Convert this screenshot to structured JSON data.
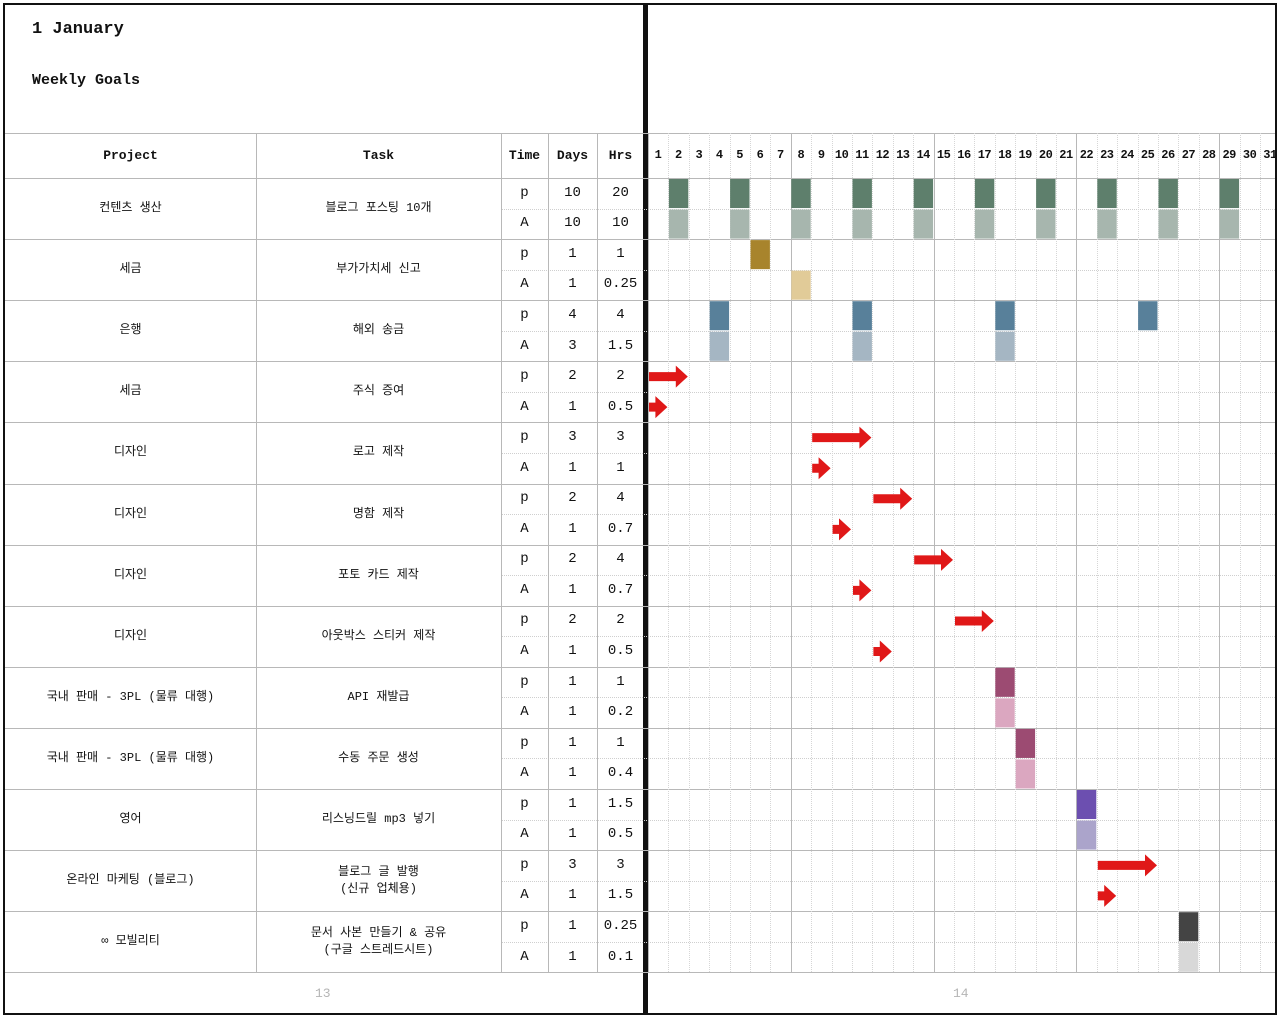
{
  "title": "1 January",
  "subtitle": "Weekly Goals",
  "columns": {
    "project": "Project",
    "task": "Task",
    "time": "Time",
    "days": "Days",
    "hrs": "Hrs"
  },
  "days": [
    "1",
    "2",
    "3",
    "4",
    "5",
    "6",
    "7",
    "8",
    "9",
    "10",
    "11",
    "12",
    "13",
    "14",
    "15",
    "16",
    "17",
    "18",
    "19",
    "20",
    "21",
    "22",
    "23",
    "24",
    "25",
    "26",
    "27",
    "28",
    "29",
    "30",
    "31"
  ],
  "rows": [
    {
      "project": "컨텐츠 생산",
      "task": "블로그 포스팅 10개",
      "p": {
        "label": "p",
        "days": "10",
        "hrs": "20"
      },
      "a": {
        "label": "A",
        "days": "10",
        "hrs": "10"
      }
    },
    {
      "project": "세금",
      "task": "부가가치세 신고",
      "p": {
        "label": "p",
        "days": "1",
        "hrs": "1"
      },
      "a": {
        "label": "A",
        "days": "1",
        "hrs": "0.25"
      }
    },
    {
      "project": "은행",
      "task": "해외 송금",
      "p": {
        "label": "p",
        "days": "4",
        "hrs": "4"
      },
      "a": {
        "label": "A",
        "days": "3",
        "hrs": "1.5"
      }
    },
    {
      "project": "세금",
      "task": "주식 증여",
      "p": {
        "label": "p",
        "days": "2",
        "hrs": "2"
      },
      "a": {
        "label": "A",
        "days": "1",
        "hrs": "0.5"
      }
    },
    {
      "project": "디자인",
      "task": "로고 제작",
      "p": {
        "label": "p",
        "days": "3",
        "hrs": "3"
      },
      "a": {
        "label": "A",
        "days": "1",
        "hrs": "1"
      }
    },
    {
      "project": "디자인",
      "task": "명함 제작",
      "p": {
        "label": "p",
        "days": "2",
        "hrs": "4"
      },
      "a": {
        "label": "A",
        "days": "1",
        "hrs": "0.7"
      }
    },
    {
      "project": "디자인",
      "task": "포토 카드 제작",
      "p": {
        "label": "p",
        "days": "2",
        "hrs": "4"
      },
      "a": {
        "label": "A",
        "days": "1",
        "hrs": "0.7"
      }
    },
    {
      "project": "디자인",
      "task": "아웃박스 스티커 제작",
      "p": {
        "label": "p",
        "days": "2",
        "hrs": "2"
      },
      "a": {
        "label": "A",
        "days": "1",
        "hrs": "0.5"
      }
    },
    {
      "project": "국내 판매 - 3PL (물류 대행)",
      "task": "API 재발급",
      "p": {
        "label": "p",
        "days": "1",
        "hrs": "1"
      },
      "a": {
        "label": "A",
        "days": "1",
        "hrs": "0.2"
      }
    },
    {
      "project": "국내 판매 - 3PL (물류 대행)",
      "task": "수동 주문 생성",
      "p": {
        "label": "p",
        "days": "1",
        "hrs": "1"
      },
      "a": {
        "label": "A",
        "days": "1",
        "hrs": "0.4"
      }
    },
    {
      "project": "영어",
      "task": "리스닝드릴 mp3 넣기",
      "p": {
        "label": "p",
        "days": "1",
        "hrs": "1.5"
      },
      "a": {
        "label": "A",
        "days": "1",
        "hrs": "0.5"
      }
    },
    {
      "project": "온라인 마케팅 (블로그)",
      "task": "블로그 글 발행\n(신규 업체용)",
      "p": {
        "label": "p",
        "days": "3",
        "hrs": "3"
      },
      "a": {
        "label": "A",
        "days": "1",
        "hrs": "1.5"
      }
    },
    {
      "project": "∞ 모빌리티",
      "task": "문서 사본 만들기 & 공유\n(구글 스트레드시트)",
      "p": {
        "label": "p",
        "days": "1",
        "hrs": "0.25"
      },
      "a": {
        "label": "A",
        "days": "1",
        "hrs": "0.1"
      }
    }
  ],
  "bars": [
    {
      "row": 0,
      "sub": "p",
      "days": [
        2,
        5,
        8,
        11,
        14,
        17,
        20,
        23,
        26,
        29
      ],
      "color": "#5e7f6c"
    },
    {
      "row": 0,
      "sub": "a",
      "days": [
        2,
        5,
        8,
        11,
        14,
        17,
        20,
        23,
        26,
        29
      ],
      "color": "#a7b6ae"
    },
    {
      "row": 1,
      "sub": "p",
      "days": [
        6
      ],
      "color": "#a8842c"
    },
    {
      "row": 1,
      "sub": "a",
      "days": [
        8
      ],
      "color": "#e1cb98"
    },
    {
      "row": 2,
      "sub": "p",
      "days": [
        4,
        11,
        18,
        25
      ],
      "color": "#58809a"
    },
    {
      "row": 2,
      "sub": "a",
      "days": [
        4,
        11,
        18
      ],
      "color": "#a5b6c3"
    },
    {
      "row": 8,
      "sub": "p",
      "days": [
        18
      ],
      "color": "#9c4b72"
    },
    {
      "row": 8,
      "sub": "a",
      "days": [
        18
      ],
      "color": "#dba7c0"
    },
    {
      "row": 9,
      "sub": "p",
      "days": [
        19
      ],
      "color": "#9c4b72"
    },
    {
      "row": 9,
      "sub": "a",
      "days": [
        19
      ],
      "color": "#dba7c0"
    },
    {
      "row": 10,
      "sub": "p",
      "days": [
        22
      ],
      "color": "#6c4fb0"
    },
    {
      "row": 10,
      "sub": "a",
      "days": [
        22
      ],
      "color": "#aba4cb"
    },
    {
      "row": 12,
      "sub": "p",
      "days": [
        27
      ],
      "color": "#444444"
    },
    {
      "row": 12,
      "sub": "a",
      "days": [
        27
      ],
      "color": "#d8d8d8"
    }
  ],
  "arrows": [
    {
      "row": 3,
      "sub": "p",
      "start": 1,
      "span": 2
    },
    {
      "row": 3,
      "sub": "a",
      "start": 1,
      "span": 1
    },
    {
      "row": 4,
      "sub": "p",
      "start": 9,
      "span": 3
    },
    {
      "row": 4,
      "sub": "a",
      "start": 9,
      "span": 1
    },
    {
      "row": 5,
      "sub": "p",
      "start": 12,
      "span": 2
    },
    {
      "row": 5,
      "sub": "a",
      "start": 10,
      "span": 1
    },
    {
      "row": 6,
      "sub": "p",
      "start": 14,
      "span": 2
    },
    {
      "row": 6,
      "sub": "a",
      "start": 11,
      "span": 1
    },
    {
      "row": 7,
      "sub": "p",
      "start": 16,
      "span": 2
    },
    {
      "row": 7,
      "sub": "a",
      "start": 12,
      "span": 1
    },
    {
      "row": 11,
      "sub": "p",
      "start": 23,
      "span": 3
    },
    {
      "row": 11,
      "sub": "a",
      "start": 23,
      "span": 1
    }
  ],
  "colors": {
    "arrow": "#e01818"
  },
  "page_left": "13",
  "page_right": "14"
}
